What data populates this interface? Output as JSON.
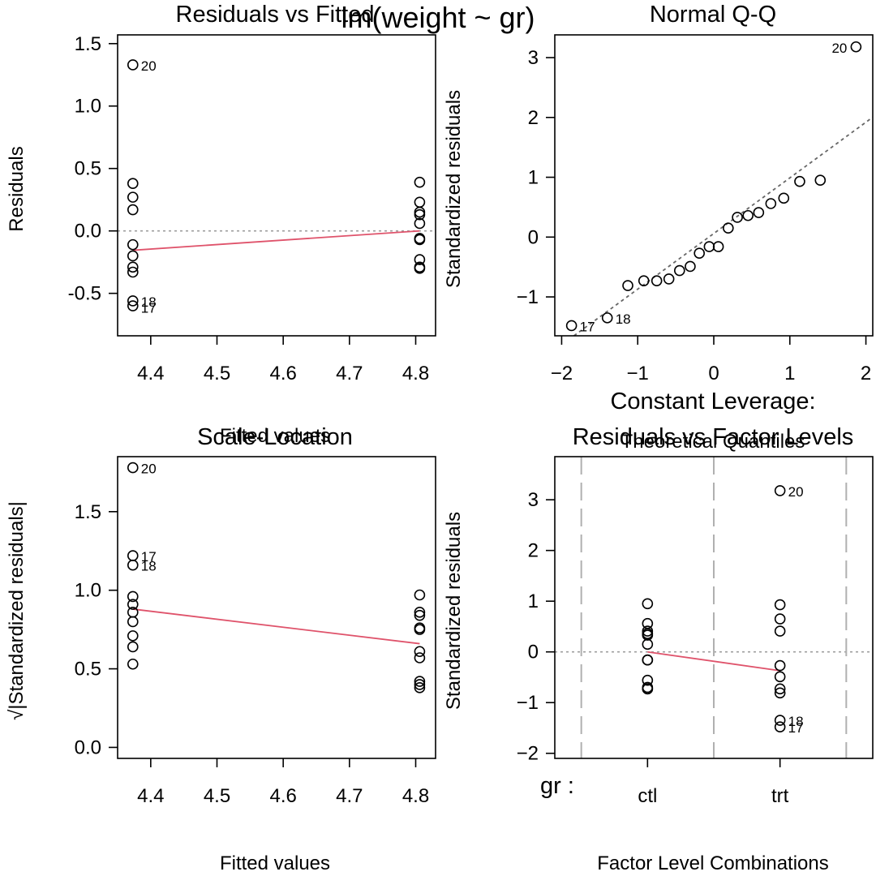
{
  "figure": {
    "title": "lm(weight ~ gr)",
    "factor_label": "gr :"
  },
  "colors": {
    "smooth": "#DF536B",
    "reference": "#9E9E9E",
    "points": "#000000"
  },
  "chart_data": [
    {
      "type": "scatter",
      "title": "Residuals vs Fitted",
      "xlabel": "Fitted values",
      "ylabel": "Residuals",
      "xlim": [
        4.35,
        4.83
      ],
      "ylim": [
        -0.84,
        1.57
      ],
      "xticks": [
        4.4,
        4.5,
        4.6,
        4.7,
        4.8
      ],
      "yticks": [
        -0.5,
        0.0,
        0.5,
        1.0,
        1.5
      ],
      "ytick_labels": [
        "-0.5",
        "0.0",
        "0.5",
        "1.0",
        "1.5"
      ],
      "points": [
        [
          4.373,
          1.33
        ],
        [
          4.373,
          0.38
        ],
        [
          4.373,
          0.27
        ],
        [
          4.373,
          0.17
        ],
        [
          4.373,
          -0.11
        ],
        [
          4.373,
          -0.2
        ],
        [
          4.373,
          -0.29
        ],
        [
          4.373,
          -0.33
        ],
        [
          4.373,
          -0.56
        ],
        [
          4.373,
          -0.6
        ],
        [
          4.806,
          0.39
        ],
        [
          4.806,
          0.23
        ],
        [
          4.806,
          0.15
        ],
        [
          4.806,
          0.13
        ],
        [
          4.806,
          0.06
        ],
        [
          4.806,
          -0.06
        ],
        [
          4.806,
          -0.07
        ],
        [
          4.806,
          -0.23
        ],
        [
          4.806,
          -0.29
        ],
        [
          4.806,
          -0.3
        ]
      ],
      "point_labels": [
        {
          "text": "20",
          "x": 4.373,
          "y": 1.33
        },
        {
          "text": "18",
          "x": 4.373,
          "y": -0.56
        },
        {
          "text": "17",
          "x": 4.373,
          "y": -0.61
        }
      ],
      "smooth": [
        [
          4.373,
          -0.155
        ],
        [
          4.806,
          0.0
        ]
      ],
      "hline": 0
    },
    {
      "type": "scatter",
      "title": "Normal Q-Q",
      "xlabel": "Theoretical Quantiles",
      "ylabel": "Standardized residuals",
      "xlim": [
        -2.09,
        2.09
      ],
      "ylim": [
        -1.65,
        3.38
      ],
      "xticks": [
        -2,
        -1,
        0,
        1,
        2
      ],
      "xtick_labels": [
        "−2",
        "−1",
        "0",
        "1",
        "2"
      ],
      "yticks": [
        -1,
        0,
        1,
        2,
        3
      ],
      "ytick_labels": [
        "−1",
        "0",
        "1",
        "2",
        "3"
      ],
      "points": [
        [
          -1.87,
          -1.48
        ],
        [
          -1.4,
          -1.35
        ],
        [
          -1.13,
          -0.81
        ],
        [
          -0.92,
          -0.73
        ],
        [
          -0.75,
          -0.73
        ],
        [
          -0.59,
          -0.7
        ],
        [
          -0.45,
          -0.56
        ],
        [
          -0.31,
          -0.49
        ],
        [
          -0.19,
          -0.27
        ],
        [
          -0.06,
          -0.16
        ],
        [
          0.06,
          -0.16
        ],
        [
          0.19,
          0.15
        ],
        [
          0.31,
          0.33
        ],
        [
          0.45,
          0.36
        ],
        [
          0.59,
          0.41
        ],
        [
          0.75,
          0.56
        ],
        [
          0.92,
          0.65
        ],
        [
          1.13,
          0.93
        ],
        [
          1.4,
          0.95
        ],
        [
          1.87,
          3.18
        ]
      ],
      "point_labels": [
        {
          "text": "20",
          "x": 1.87,
          "y": 3.18,
          "side": "left"
        },
        {
          "text": "18",
          "x": -1.4,
          "y": -1.35,
          "side": "right"
        },
        {
          "text": "17",
          "x": -1.87,
          "y": -1.48,
          "side": "right"
        }
      ],
      "ref_line": {
        "intercept": 0.06,
        "slope": 0.93
      }
    },
    {
      "type": "scatter",
      "title": "Scale-Location",
      "xlabel": "Fitted values",
      "ylabel": "√|Standardized residuals|",
      "xlim": [
        4.35,
        4.83
      ],
      "ylim": [
        -0.07,
        1.85
      ],
      "xticks": [
        4.4,
        4.5,
        4.6,
        4.7,
        4.8
      ],
      "yticks": [
        0.0,
        0.5,
        1.0,
        1.5
      ],
      "ytick_labels": [
        "0.0",
        "0.5",
        "1.0",
        "1.5"
      ],
      "points": [
        [
          4.373,
          1.78
        ],
        [
          4.373,
          1.22
        ],
        [
          4.373,
          1.16
        ],
        [
          4.373,
          0.96
        ],
        [
          4.373,
          0.91
        ],
        [
          4.373,
          0.86
        ],
        [
          4.373,
          0.8
        ],
        [
          4.373,
          0.71
        ],
        [
          4.373,
          0.64
        ],
        [
          4.373,
          0.53
        ],
        [
          4.806,
          0.97
        ],
        [
          4.806,
          0.86
        ],
        [
          4.806,
          0.84
        ],
        [
          4.806,
          0.76
        ],
        [
          4.806,
          0.75
        ],
        [
          4.806,
          0.61
        ],
        [
          4.806,
          0.57
        ],
        [
          4.806,
          0.42
        ],
        [
          4.806,
          0.4
        ],
        [
          4.806,
          0.38
        ]
      ],
      "point_labels": [
        {
          "text": "20",
          "x": 4.373,
          "y": 1.78
        },
        {
          "text": "17",
          "x": 4.373,
          "y": 1.22
        },
        {
          "text": "18",
          "x": 4.373,
          "y": 1.16
        }
      ],
      "smooth": [
        [
          4.373,
          0.88
        ],
        [
          4.806,
          0.66
        ]
      ]
    },
    {
      "type": "scatter",
      "title": "Constant Leverage:\nResiduals vs Factor Levels",
      "title_lines": [
        "Constant Leverage:",
        "Residuals vs Factor Levels"
      ],
      "xlabel": "Factor Level Combinations",
      "ylabel": "Standardized residuals",
      "xlim": [
        0.3,
        2.7
      ],
      "ylim": [
        -2.1,
        3.85
      ],
      "categories": [
        "ctl",
        "trt"
      ],
      "category_positions": [
        1,
        2
      ],
      "yticks": [
        -2,
        -1,
        0,
        1,
        2,
        3
      ],
      "ytick_labels": [
        "−2",
        "−1",
        "0",
        "1",
        "2",
        "3"
      ],
      "points": [
        [
          1,
          0.95
        ],
        [
          1,
          0.56
        ],
        [
          1,
          0.41
        ],
        [
          1,
          0.36
        ],
        [
          1,
          0.33
        ],
        [
          1,
          0.15
        ],
        [
          1,
          -0.16
        ],
        [
          1,
          -0.16
        ],
        [
          1,
          -0.56
        ],
        [
          1,
          -0.7
        ],
        [
          1,
          -0.73
        ],
        [
          1,
          -0.73
        ],
        [
          2,
          3.18
        ],
        [
          2,
          0.93
        ],
        [
          2,
          0.65
        ],
        [
          2,
          0.41
        ],
        [
          2,
          -0.27
        ],
        [
          2,
          -0.49
        ],
        [
          2,
          -0.73
        ],
        [
          2,
          -0.81
        ],
        [
          2,
          -1.35
        ],
        [
          2,
          -1.48
        ]
      ],
      "point_labels": [
        {
          "text": "20",
          "x": 2,
          "y": 3.18
        },
        {
          "text": "18",
          "x": 2,
          "y": -1.35
        },
        {
          "text": "17",
          "x": 2,
          "y": -1.48
        }
      ],
      "smooth": [
        [
          1,
          0.0
        ],
        [
          2,
          -0.37
        ]
      ],
      "hline": 0,
      "vlines": [
        0.5,
        1.5,
        2.5
      ]
    }
  ]
}
